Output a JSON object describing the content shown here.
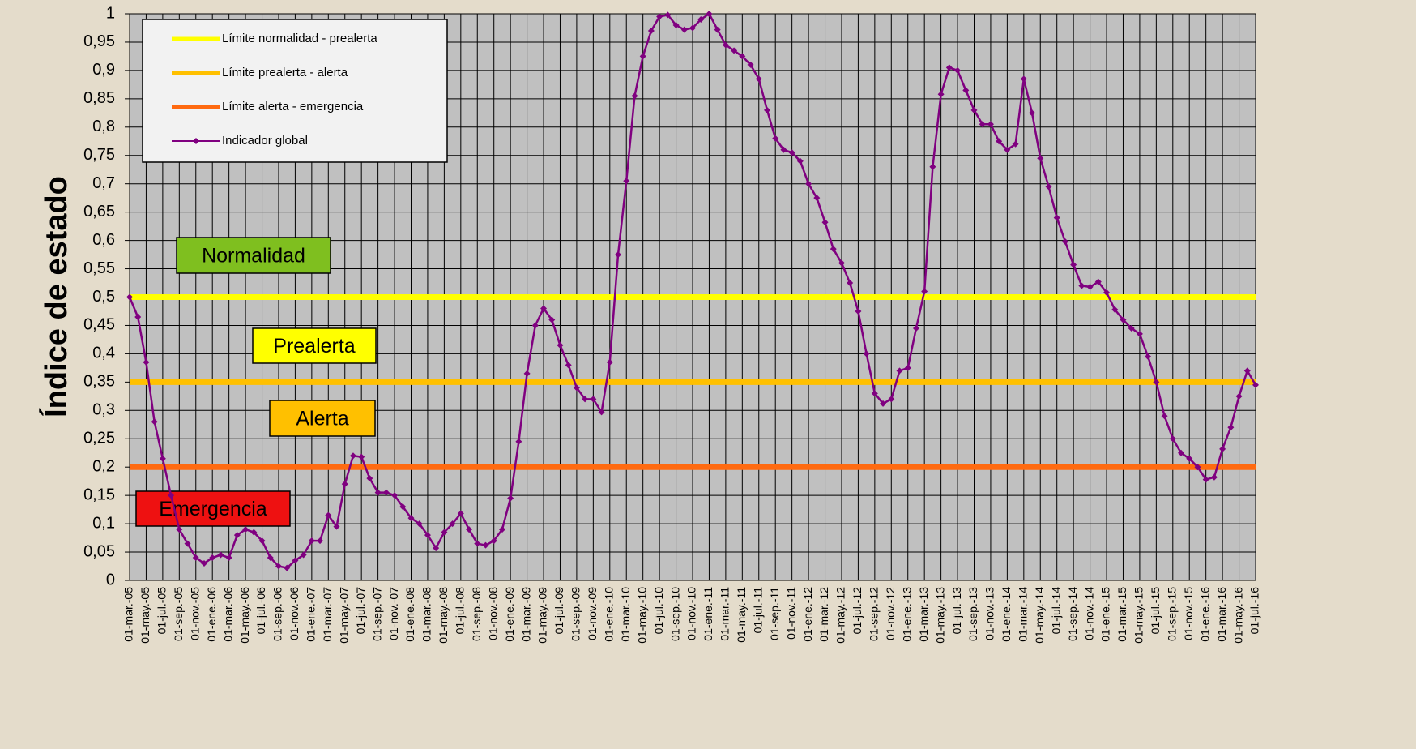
{
  "chart_data": {
    "type": "line",
    "ylabel": "Índice de estado",
    "categories": [
      "01-mar.-05",
      null,
      "01-may.-05",
      null,
      "01-jul.-05",
      null,
      "01-sep.-05",
      null,
      "01-nov.-05",
      null,
      "01-ene.-06",
      null,
      "01-mar.-06",
      null,
      "01-may.-06",
      null,
      "01-jul.-06",
      null,
      "01-sep.-06",
      null,
      "01-nov.-06",
      null,
      "01-ene.-07",
      null,
      "01-mar.-07",
      null,
      "01-may.-07",
      null,
      "01-jul.-07",
      null,
      "01-sep.-07",
      null,
      "01-nov.-07",
      null,
      "01-ene.-08",
      null,
      "01-mar.-08",
      null,
      "01-may.-08",
      null,
      "01-jul.-08",
      null,
      "01-sep.-08",
      null,
      "01-nov.-08",
      null,
      "01-ene.-09",
      null,
      "01-mar.-09",
      null,
      "01-may.-09",
      null,
      "01-jul.-09",
      null,
      "01-sep.-09",
      null,
      "01-nov.-09",
      null,
      "01-ene.-10",
      null,
      "01-mar.-10",
      null,
      "01-may.-10",
      null,
      "01-jul.-10",
      null,
      "01-sep.-10",
      null,
      "01-nov.-10",
      null,
      "01-ene.-11",
      null,
      "01-mar.-11",
      null,
      "01-may.-11",
      null,
      "01-jul.-11",
      null,
      "01-sep.-11",
      null,
      "01-nov.-11",
      null,
      "01-ene.-12",
      null,
      "01-mar.-12",
      null,
      "01-may.-12",
      null,
      "01-jul.-12",
      null,
      "01-sep.-12",
      null,
      "01-nov.-12",
      null,
      "01-ene.-13",
      null,
      "01-mar.-13",
      null,
      "01-may.-13",
      null,
      "01-jul.-13",
      null,
      "01-sep.-13",
      null,
      "01-nov.-13",
      null,
      "01-ene.-14",
      null,
      "01-mar.-14",
      null,
      "01-may.-14",
      null,
      "01-jul.-14",
      null,
      "01-sep.-14",
      null,
      "01-nov.-14",
      null,
      "01-ene.-15",
      null,
      "01-mar.-15",
      null,
      "01-may.-15",
      null,
      "01-jul.-15",
      null,
      "01-sep.-15",
      null,
      "01-nov.-15",
      null,
      "01-ene.-16",
      null,
      "01-mar.-16",
      null,
      "01-may.-16",
      null,
      "01-jul.-16"
    ],
    "reference_lines": [
      {
        "name": "Límite normalidad - prealerta",
        "color": "#ffff00",
        "value": 0.5
      },
      {
        "name": "Límite prealerta - alerta",
        "color": "#ffc000",
        "value": 0.35
      },
      {
        "name": "Límite alerta - emergencia",
        "color": "#ff6a10",
        "value": 0.2
      }
    ],
    "series": [
      {
        "name": "Indicador global",
        "color": "#800080",
        "values": [
          0.5,
          0.465,
          0.385,
          0.28,
          0.215,
          0.15,
          0.09,
          0.065,
          0.04,
          0.03,
          0.04,
          0.045,
          0.04,
          0.08,
          0.09,
          0.085,
          0.07,
          0.04,
          0.025,
          0.022,
          0.035,
          0.045,
          0.07,
          0.07,
          0.115,
          0.095,
          0.17,
          0.22,
          0.218,
          0.18,
          0.155,
          0.155,
          0.15,
          0.13,
          0.11,
          0.1,
          0.08,
          0.057,
          0.085,
          0.1,
          0.118,
          0.09,
          0.065,
          0.062,
          0.07,
          0.09,
          0.145,
          0.245,
          0.365,
          0.45,
          0.48,
          0.46,
          0.415,
          0.38,
          0.34,
          0.32,
          0.32,
          0.297,
          0.385,
          0.575,
          0.705,
          0.855,
          0.925,
          0.97,
          0.995,
          0.998,
          0.98,
          0.972,
          0.975,
          0.99,
          1.0,
          0.972,
          0.945,
          0.935,
          0.925,
          0.91,
          0.885,
          0.83,
          0.78,
          0.76,
          0.755,
          0.74,
          0.7,
          0.675,
          0.632,
          0.585,
          0.56,
          0.525,
          0.475,
          0.4,
          0.33,
          0.312,
          0.32,
          0.37,
          0.375,
          0.445,
          0.51,
          0.73,
          0.858,
          0.905,
          0.9,
          0.865,
          0.83,
          0.805,
          0.805,
          0.775,
          0.76,
          0.77,
          0.885,
          0.825,
          0.745,
          0.695,
          0.64,
          0.598,
          0.557,
          0.52,
          0.518,
          0.527,
          0.508,
          0.478,
          0.46,
          0.445,
          0.435,
          0.395,
          0.35,
          0.29,
          0.25,
          0.225,
          0.215,
          0.2,
          0.178,
          0.182,
          0.232,
          0.27,
          0.325,
          0.37,
          0.345
        ]
      }
    ],
    "annotations": [
      {
        "text": "Normalidad",
        "color": "#7fbf1f"
      },
      {
        "text": "Prealerta",
        "color": "#ffff00"
      },
      {
        "text": "Alerta",
        "color": "#ffc000"
      },
      {
        "text": "Emergencia",
        "color": "#ee1111"
      }
    ],
    "ylim": [
      0,
      1
    ],
    "yticks": [
      0,
      {
        "value": 0.05,
        "label": "0,05"
      },
      {
        "value": 0.1,
        "label": "0,1"
      },
      {
        "value": 0.15,
        "label": "0,15"
      },
      {
        "value": 0.2,
        "label": "0,2"
      },
      {
        "value": 0.25,
        "label": "0,25"
      },
      {
        "value": 0.3,
        "label": "0,3"
      },
      {
        "value": 0.35,
        "label": "0,35"
      },
      {
        "value": 0.4,
        "label": "0,4"
      },
      {
        "value": 0.45,
        "label": "0,45"
      },
      {
        "value": 0.5,
        "label": "0,5"
      },
      {
        "value": 0.55,
        "label": "0,55"
      },
      {
        "value": 0.6,
        "label": "0,6"
      },
      {
        "value": 0.65,
        "label": "0,65"
      },
      {
        "value": 0.7,
        "label": "0,7"
      },
      {
        "value": 0.75,
        "label": "0,75"
      },
      {
        "value": 0.8,
        "label": "0,8"
      },
      {
        "value": 0.85,
        "label": "0,85"
      },
      {
        "value": 0.9,
        "label": "0,9"
      },
      {
        "value": 0.95,
        "label": "0,95"
      },
      1
    ],
    "grid": true,
    "legend": "upper left"
  }
}
